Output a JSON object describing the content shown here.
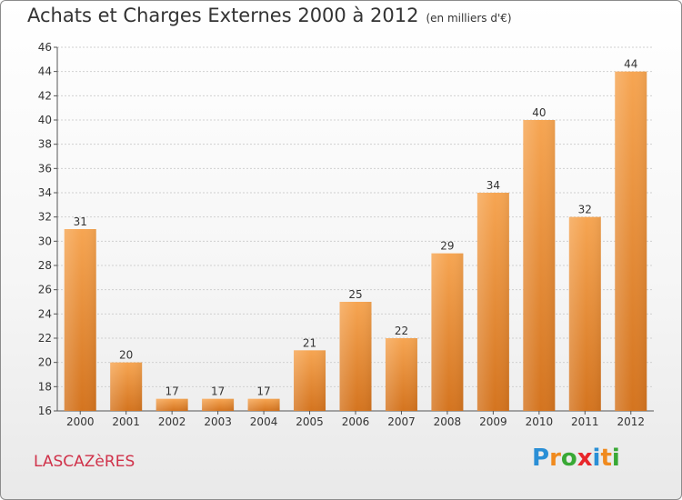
{
  "title": "Achats et Charges Externes 2000 à 2012",
  "subtitle": "(en milliers d'€)",
  "footer": {
    "town": "LASCAZèRES"
  },
  "logo": {
    "text": "Proxiti",
    "letters": [
      {
        "ch": "P",
        "color": "#2a8fd6"
      },
      {
        "ch": "r",
        "color": "#f08a1e"
      },
      {
        "ch": "o",
        "color": "#39a935"
      },
      {
        "ch": "x",
        "color": "#e8262b"
      },
      {
        "ch": "i",
        "color": "#2a8fd6"
      },
      {
        "ch": "t",
        "color": "#f08a1e"
      },
      {
        "ch": "i",
        "color": "#39a935"
      }
    ]
  },
  "colors": {
    "bar_light": "#f6a552",
    "bar_dark": "#d4741f",
    "grid": "#d0d0d0",
    "text": "#333333"
  },
  "chart_data": {
    "type": "bar",
    "categories": [
      "2000",
      "2001",
      "2002",
      "2003",
      "2004",
      "2005",
      "2006",
      "2007",
      "2008",
      "2009",
      "2010",
      "2011",
      "2012"
    ],
    "values": [
      31,
      20,
      17,
      17,
      17,
      21,
      25,
      22,
      29,
      34,
      40,
      32,
      44
    ],
    "title": "Achats et Charges Externes 2000 à 2012",
    "xlabel": "",
    "ylabel": "",
    "ylim": [
      16,
      46
    ],
    "yticks": [
      16,
      18,
      20,
      22,
      24,
      26,
      28,
      30,
      32,
      34,
      36,
      38,
      40,
      42,
      44,
      46
    ],
    "grid": true,
    "data_labels": true
  }
}
